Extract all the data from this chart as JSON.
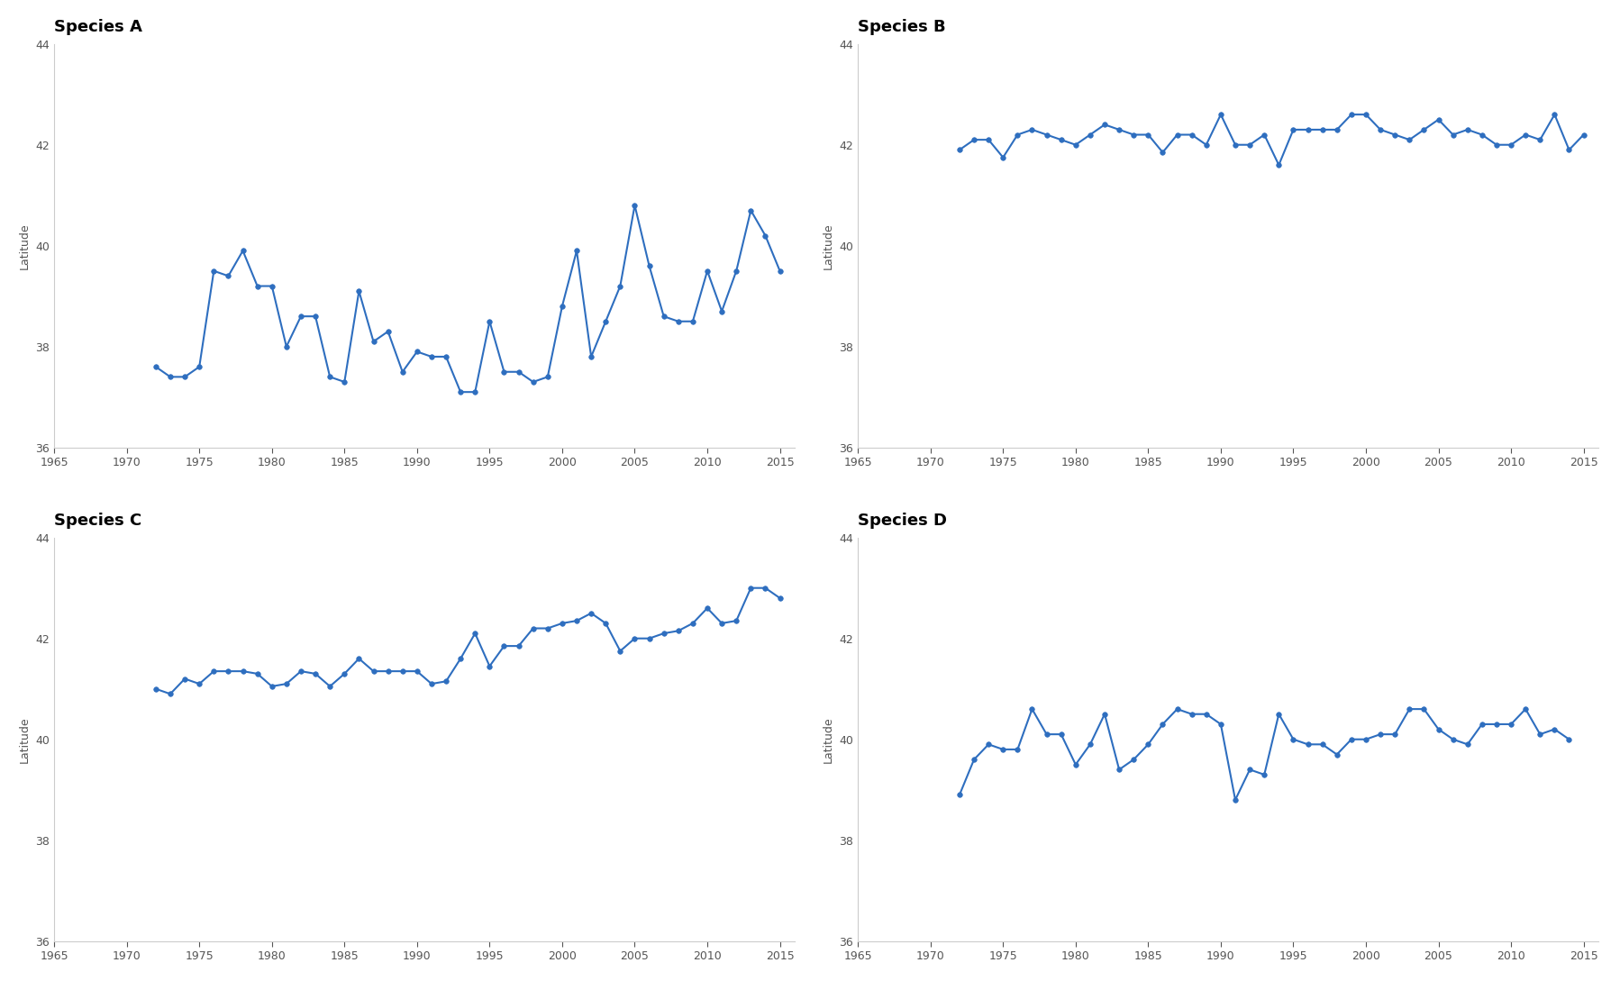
{
  "species_A": {
    "title": "Species A",
    "years": [
      1972,
      1973,
      1974,
      1975,
      1976,
      1977,
      1978,
      1979,
      1980,
      1981,
      1982,
      1983,
      1984,
      1985,
      1986,
      1987,
      1988,
      1989,
      1990,
      1991,
      1992,
      1993,
      1994,
      1995,
      1996,
      1997,
      1998,
      1999,
      2000,
      2001,
      2002,
      2003,
      2004,
      2005,
      2006,
      2007,
      2008,
      2009,
      2010,
      2011,
      2012,
      2013,
      2014,
      2015
    ],
    "values": [
      37.6,
      37.4,
      37.4,
      37.6,
      39.5,
      39.4,
      39.9,
      39.2,
      39.2,
      38.0,
      38.6,
      38.6,
      37.4,
      37.3,
      39.1,
      38.1,
      38.3,
      37.5,
      37.9,
      37.8,
      37.8,
      37.1,
      37.1,
      38.5,
      37.5,
      37.5,
      37.3,
      37.4,
      38.8,
      39.9,
      37.8,
      38.5,
      39.2,
      40.8,
      39.6,
      38.6,
      38.5,
      38.5,
      39.5,
      38.7,
      39.5,
      40.7,
      40.2,
      39.5
    ]
  },
  "species_B": {
    "title": "Species B",
    "years": [
      1972,
      1973,
      1974,
      1975,
      1976,
      1977,
      1978,
      1979,
      1980,
      1981,
      1982,
      1983,
      1984,
      1985,
      1986,
      1987,
      1988,
      1989,
      1990,
      1991,
      1992,
      1993,
      1994,
      1995,
      1996,
      1997,
      1998,
      1999,
      2000,
      2001,
      2002,
      2003,
      2004,
      2005,
      2006,
      2007,
      2008,
      2009,
      2010,
      2011,
      2012,
      2013,
      2014,
      2015
    ],
    "values": [
      41.9,
      42.1,
      42.1,
      41.75,
      42.2,
      42.3,
      42.2,
      42.1,
      42.0,
      42.2,
      42.4,
      42.3,
      42.2,
      42.2,
      41.85,
      42.2,
      42.2,
      42.0,
      42.6,
      42.0,
      42.0,
      42.2,
      41.6,
      42.3,
      42.3,
      42.3,
      42.3,
      42.6,
      42.6,
      42.3,
      42.2,
      42.1,
      42.3,
      42.5,
      42.2,
      42.3,
      42.2,
      42.0,
      42.0,
      42.2,
      42.1,
      42.6,
      41.9,
      42.2
    ]
  },
  "species_C": {
    "title": "Species C",
    "years": [
      1972,
      1973,
      1974,
      1975,
      1976,
      1977,
      1978,
      1979,
      1980,
      1981,
      1982,
      1983,
      1984,
      1985,
      1986,
      1987,
      1988,
      1989,
      1990,
      1991,
      1992,
      1993,
      1994,
      1995,
      1996,
      1997,
      1998,
      1999,
      2000,
      2001,
      2002,
      2003,
      2004,
      2005,
      2006,
      2007,
      2008,
      2009,
      2010,
      2011,
      2012,
      2013,
      2014,
      2015
    ],
    "values": [
      41.0,
      40.9,
      41.2,
      41.1,
      41.35,
      41.35,
      41.35,
      41.3,
      41.05,
      41.1,
      41.35,
      41.3,
      41.05,
      41.3,
      41.6,
      41.35,
      41.35,
      41.35,
      41.35,
      41.1,
      41.15,
      41.6,
      42.1,
      41.45,
      41.85,
      41.85,
      42.2,
      42.2,
      42.3,
      42.35,
      42.5,
      42.3,
      41.75,
      42.0,
      42.0,
      42.1,
      42.15,
      42.3,
      42.6,
      42.3,
      42.35,
      43.0,
      43.0,
      42.8
    ]
  },
  "species_D": {
    "title": "Species D",
    "years": [
      1972,
      1973,
      1974,
      1975,
      1976,
      1977,
      1978,
      1979,
      1980,
      1981,
      1982,
      1983,
      1984,
      1985,
      1986,
      1987,
      1988,
      1989,
      1990,
      1991,
      1992,
      1993,
      1994,
      1995,
      1996,
      1997,
      1998,
      1999,
      2000,
      2001,
      2002,
      2003,
      2004,
      2005,
      2006,
      2007,
      2008,
      2009,
      2010,
      2011,
      2012,
      2013,
      2014,
      2015
    ],
    "values": [
      38.9,
      39.6,
      39.9,
      39.8,
      39.8,
      40.6,
      40.1,
      40.1,
      39.5,
      39.9,
      40.5,
      39.4,
      39.6,
      39.9,
      40.3,
      40.6,
      40.5,
      40.5,
      40.3,
      38.8,
      39.4,
      39.3,
      40.5,
      40.0,
      39.9,
      39.9,
      39.7,
      40.0,
      40.0,
      40.1,
      40.1,
      40.6,
      40.6,
      40.2,
      40.0,
      39.9,
      40.3,
      40.3,
      40.3,
      40.6,
      40.1,
      40.2,
      40.0,
      null
    ]
  },
  "line_color": "#2E6EBF",
  "marker": "o",
  "marker_size": 4,
  "line_width": 1.5,
  "ylim": [
    36,
    44
  ],
  "xlim": [
    1965,
    2016
  ],
  "yticks": [
    36,
    38,
    40,
    42,
    44
  ],
  "xticks": [
    1965,
    1970,
    1975,
    1980,
    1985,
    1990,
    1995,
    2000,
    2005,
    2010,
    2015
  ],
  "ylabel": "Latitude",
  "background_color": "#ffffff",
  "title_fontsize": 13,
  "axis_label_fontsize": 9,
  "tick_fontsize": 9,
  "title_fontweight": "bold"
}
